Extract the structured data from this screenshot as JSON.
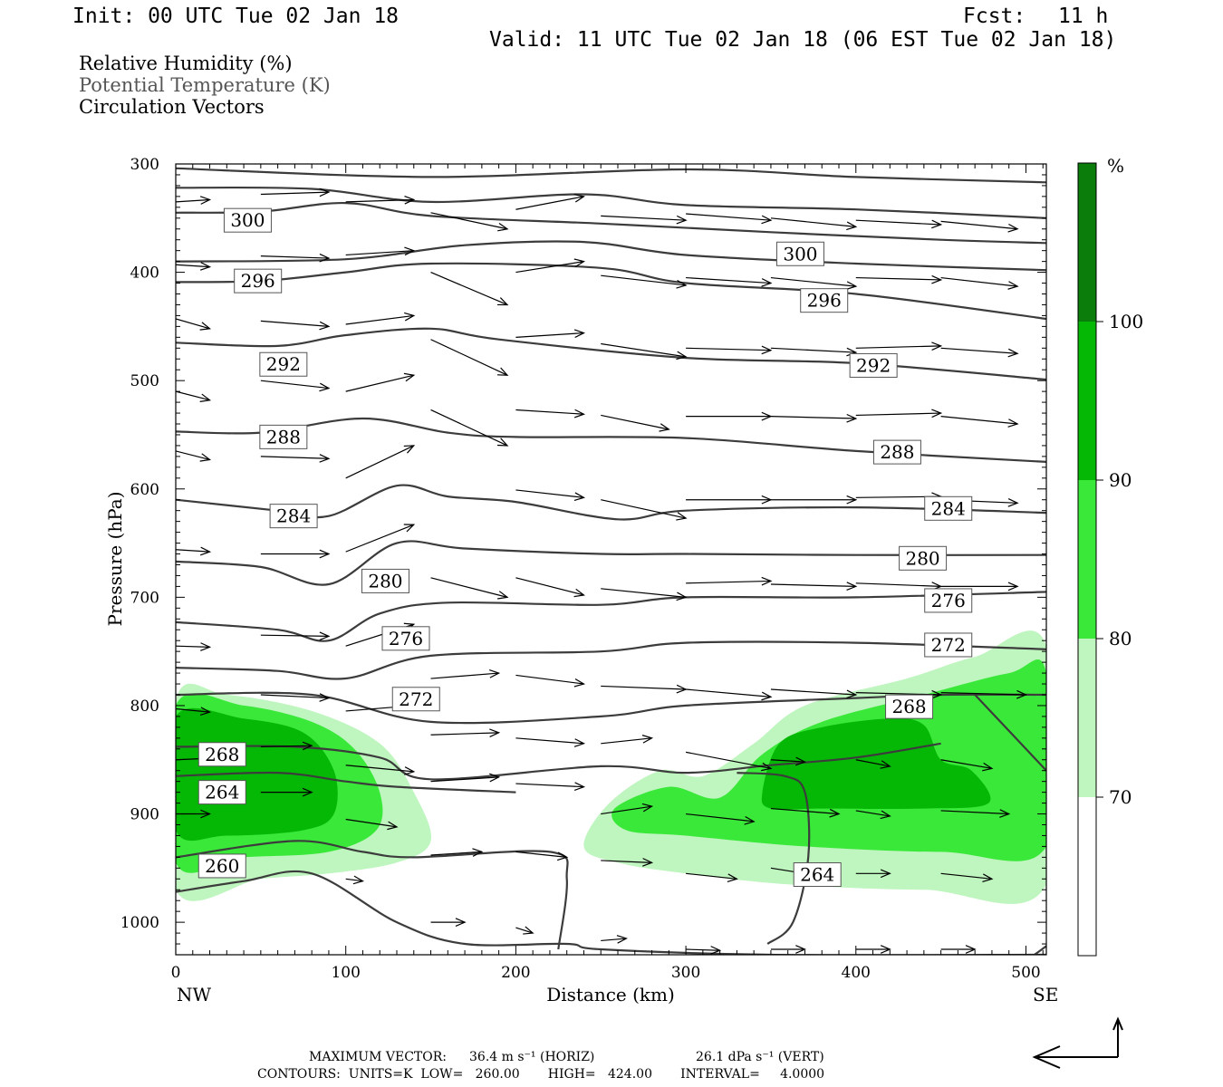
{
  "header": {
    "init": "Init: 00 UTC Tue 02 Jan 18",
    "fcst_label": "Fcst:",
    "fcst_value": "11 h",
    "valid": "Valid: 11 UTC Tue 02 Jan 18 (06 EST Tue 02 Jan 18)"
  },
  "legend": {
    "line1": "Relative Humidity (%)",
    "line2": "Potential Temperature (K)",
    "line3": "Circulation Vectors"
  },
  "footer": {
    "max_vector_label": "MAXIMUM VECTOR:",
    "horiz": "36.4 m s⁻¹ (HORIZ)",
    "vert": "26.1 dPa s⁻¹ (VERT)",
    "contours": "CONTOURS:  UNITS=K  LOW=   260.00       HIGH=   424.00       INTERVAL=     4.0000"
  },
  "colors": {
    "rh70": "#bff5bf",
    "rh80": "#3ae83a",
    "rh90": "#06b806",
    "rh100": "#0a7d0a",
    "theta_line": "#3c3c3c"
  },
  "chart_data": {
    "type": "cross-section",
    "xlabel": "Distance (km)",
    "ylabel": "Pressure (hPa)",
    "x_end_labels": [
      "NW",
      "SE"
    ],
    "xlim": [
      0,
      512
    ],
    "ylim": [
      1030,
      300
    ],
    "x_ticks": [
      0,
      100,
      200,
      300,
      400,
      500
    ],
    "y_ticks": [
      300,
      400,
      500,
      600,
      700,
      800,
      900,
      1000
    ],
    "colorbar": {
      "unit": "%",
      "levels": [
        70,
        80,
        90,
        100
      ],
      "colors": [
        "#ffffff",
        "#bff5bf",
        "#3ae83a",
        "#06b806",
        "#0a7d0a"
      ]
    },
    "rh_regions": [
      {
        "level": 70,
        "points": [
          [
            0,
            795
          ],
          [
            30,
            790
          ],
          [
            80,
            805
          ],
          [
            120,
            835
          ],
          [
            140,
            880
          ],
          [
            150,
            925
          ],
          [
            130,
            945
          ],
          [
            90,
            955
          ],
          [
            50,
            960
          ],
          [
            0,
            970
          ]
        ]
      },
      {
        "level": 70,
        "points": [
          [
            240,
            930
          ],
          [
            255,
            890
          ],
          [
            285,
            860
          ],
          [
            310,
            865
          ],
          [
            340,
            835
          ],
          [
            370,
            800
          ],
          [
            430,
            775
          ],
          [
            470,
            755
          ],
          [
            512,
            745
          ],
          [
            512,
            965
          ],
          [
            440,
            970
          ],
          [
            360,
            965
          ],
          [
            300,
            955
          ],
          [
            260,
            945
          ]
        ]
      },
      {
        "level": 80,
        "points": [
          [
            0,
            800
          ],
          [
            40,
            800
          ],
          [
            80,
            815
          ],
          [
            105,
            840
          ],
          [
            120,
            880
          ],
          [
            118,
            915
          ],
          [
            90,
            935
          ],
          [
            40,
            940
          ],
          [
            0,
            945
          ]
        ]
      },
      {
        "level": 80,
        "points": [
          [
            258,
            895
          ],
          [
            290,
            875
          ],
          [
            320,
            885
          ],
          [
            345,
            845
          ],
          [
            380,
            815
          ],
          [
            440,
            790
          ],
          [
            490,
            770
          ],
          [
            512,
            770
          ],
          [
            512,
            930
          ],
          [
            450,
            935
          ],
          [
            370,
            930
          ],
          [
            300,
            920
          ],
          [
            265,
            915
          ]
        ]
      },
      {
        "level": 90,
        "points": [
          [
            0,
            810
          ],
          [
            40,
            812
          ],
          [
            75,
            825
          ],
          [
            93,
            860
          ],
          [
            93,
            900
          ],
          [
            75,
            915
          ],
          [
            30,
            920
          ],
          [
            0,
            915
          ]
        ]
      },
      {
        "level": 90,
        "points": [
          [
            345,
            880
          ],
          [
            355,
            835
          ],
          [
            380,
            820
          ],
          [
            420,
            812
          ],
          [
            440,
            818
          ],
          [
            450,
            850
          ],
          [
            468,
            860
          ],
          [
            478,
            890
          ],
          [
            440,
            895
          ],
          [
            380,
            895
          ],
          [
            350,
            895
          ]
        ]
      }
    ],
    "theta_contours": [
      {
        "theta": 300,
        "label_pos": [
          29,
          352
        ]
      },
      {
        "theta": 296,
        "label_pos": [
          35,
          408
        ]
      },
      {
        "theta": 292,
        "label_pos": [
          50,
          485
        ]
      },
      {
        "theta": 288,
        "label_pos": [
          50,
          552
        ]
      },
      {
        "theta": 284,
        "label_pos": [
          56,
          625
        ]
      },
      {
        "theta": 280,
        "label_pos": [
          110,
          685
        ]
      },
      {
        "theta": 276,
        "label_pos": [
          122,
          738
        ]
      },
      {
        "theta": 272,
        "label_pos": [
          128,
          794
        ]
      },
      {
        "theta": 268,
        "label_pos": [
          14,
          845
        ]
      },
      {
        "theta": 264,
        "label_pos": [
          14,
          880
        ]
      },
      {
        "theta": 260,
        "label_pos": [
          14,
          948
        ]
      },
      {
        "theta": 300,
        "label_pos": [
          354,
          383
        ]
      },
      {
        "theta": 296,
        "label_pos": [
          368,
          426
        ]
      },
      {
        "theta": 292,
        "label_pos": [
          397,
          486
        ]
      },
      {
        "theta": 288,
        "label_pos": [
          411,
          566
        ]
      },
      {
        "theta": 284,
        "label_pos": [
          441,
          618
        ]
      },
      {
        "theta": 280,
        "label_pos": [
          426,
          664
        ]
      },
      {
        "theta": 276,
        "label_pos": [
          441,
          703
        ]
      },
      {
        "theta": 272,
        "label_pos": [
          441,
          744
        ]
      },
      {
        "theta": 268,
        "label_pos": [
          418,
          801
        ]
      },
      {
        "theta": 264,
        "label_pos": [
          364,
          956
        ]
      }
    ]
  }
}
